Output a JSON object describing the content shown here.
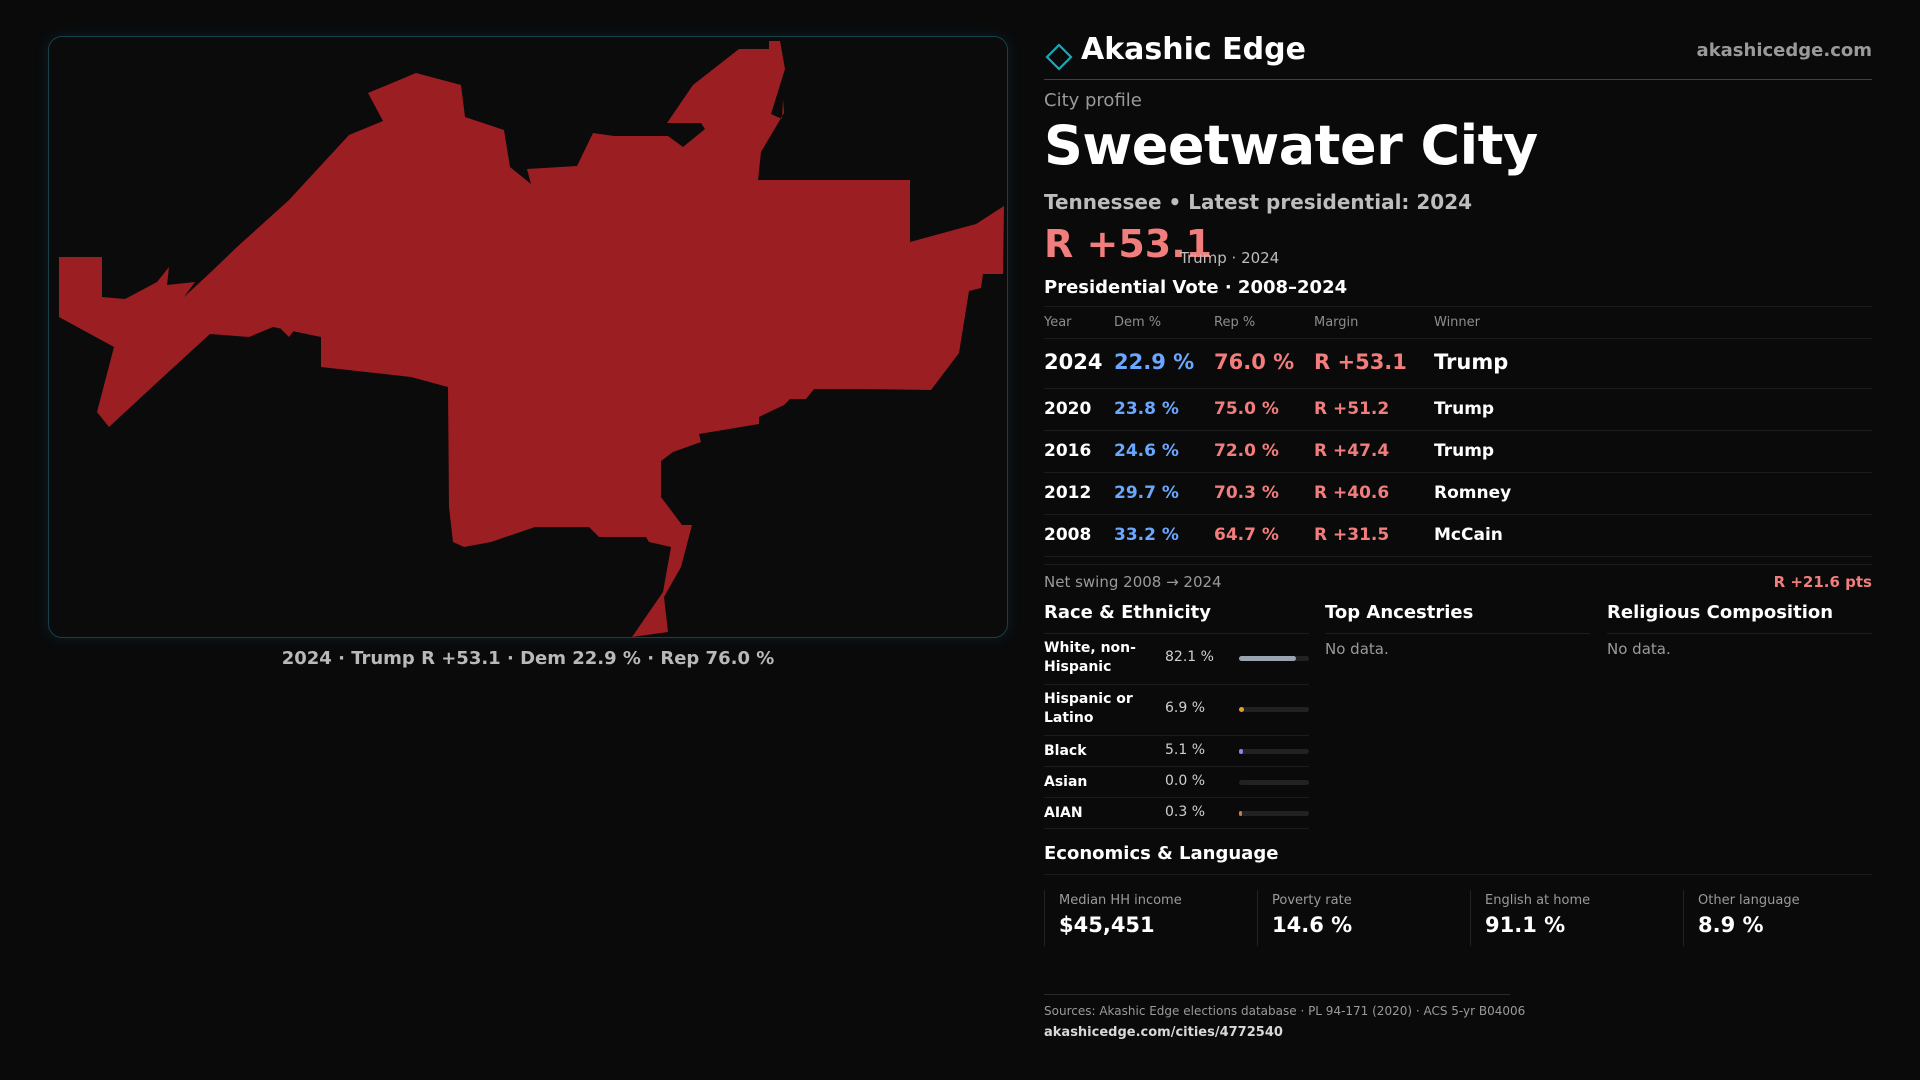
{
  "brand": {
    "name": "Akashic Edge",
    "url": "akashicedge.com"
  },
  "map": {
    "fill_color": "#9b1e22",
    "caption": "2024 · Trump R +53.1 · Dem 22.9 % · Rep 76.0 %"
  },
  "profile": {
    "kicker": "City profile",
    "city": "Sweetwater City",
    "subtitle": "Tennessee • Latest presidential: 2024",
    "headline_margin": "R +53.1",
    "headline_sub": "Trump · 2024"
  },
  "presidential": {
    "title": "Presidential Vote · 2008–2024",
    "headers": {
      "year": "Year",
      "dem": "Dem %",
      "rep": "Rep %",
      "margin": "Margin",
      "winner": "Winner"
    },
    "rows": [
      {
        "year": "2024",
        "dem": "22.9 %",
        "rep": "76.0 %",
        "margin": "R +53.1",
        "winner": "Trump"
      },
      {
        "year": "2020",
        "dem": "23.8 %",
        "rep": "75.0 %",
        "margin": "R +51.2",
        "winner": "Trump"
      },
      {
        "year": "2016",
        "dem": "24.6 %",
        "rep": "72.0 %",
        "margin": "R +47.4",
        "winner": "Trump"
      },
      {
        "year": "2012",
        "dem": "29.7 %",
        "rep": "70.3 %",
        "margin": "R +40.6",
        "winner": "Romney"
      },
      {
        "year": "2008",
        "dem": "33.2 %",
        "rep": "64.7 %",
        "margin": "R +31.5",
        "winner": "McCain"
      }
    ],
    "swing_label": "Net swing 2008 → 2024",
    "swing_value": "R +21.6 pts"
  },
  "race": {
    "title": "Race & Ethnicity",
    "rows": [
      {
        "label": "White, non-Hispanic",
        "pct": "82.1 %",
        "share": 0.821,
        "color": "#9aa3b0"
      },
      {
        "label": "Hispanic or Latino",
        "pct": "6.9 %",
        "share": 0.069,
        "color": "#e0a030"
      },
      {
        "label": "Black",
        "pct": "5.1 %",
        "share": 0.051,
        "color": "#8b86e8"
      },
      {
        "label": "Asian",
        "pct": "0.0 %",
        "share": 0.0,
        "color": "#5fb0a0"
      },
      {
        "label": "AIAN",
        "pct": "0.3 %",
        "share": 0.003,
        "color": "#d07a40"
      }
    ]
  },
  "ancestries": {
    "title": "Top Ancestries",
    "empty": "No data."
  },
  "religion": {
    "title": "Religious Composition",
    "empty": "No data."
  },
  "economics": {
    "title": "Economics & Language",
    "cells": [
      {
        "label": "Median HH income",
        "value": "$45,451"
      },
      {
        "label": "Poverty rate",
        "value": "14.6 %"
      },
      {
        "label": "English at home",
        "value": "91.1 %"
      },
      {
        "label": "Other language",
        "value": "8.9 %"
      }
    ]
  },
  "footer": {
    "sources": "Sources: Akashic Edge elections database · PL 94-171 (2020) · ACS 5-yr B04006",
    "url": "akashicedge.com/cities/4772540"
  }
}
